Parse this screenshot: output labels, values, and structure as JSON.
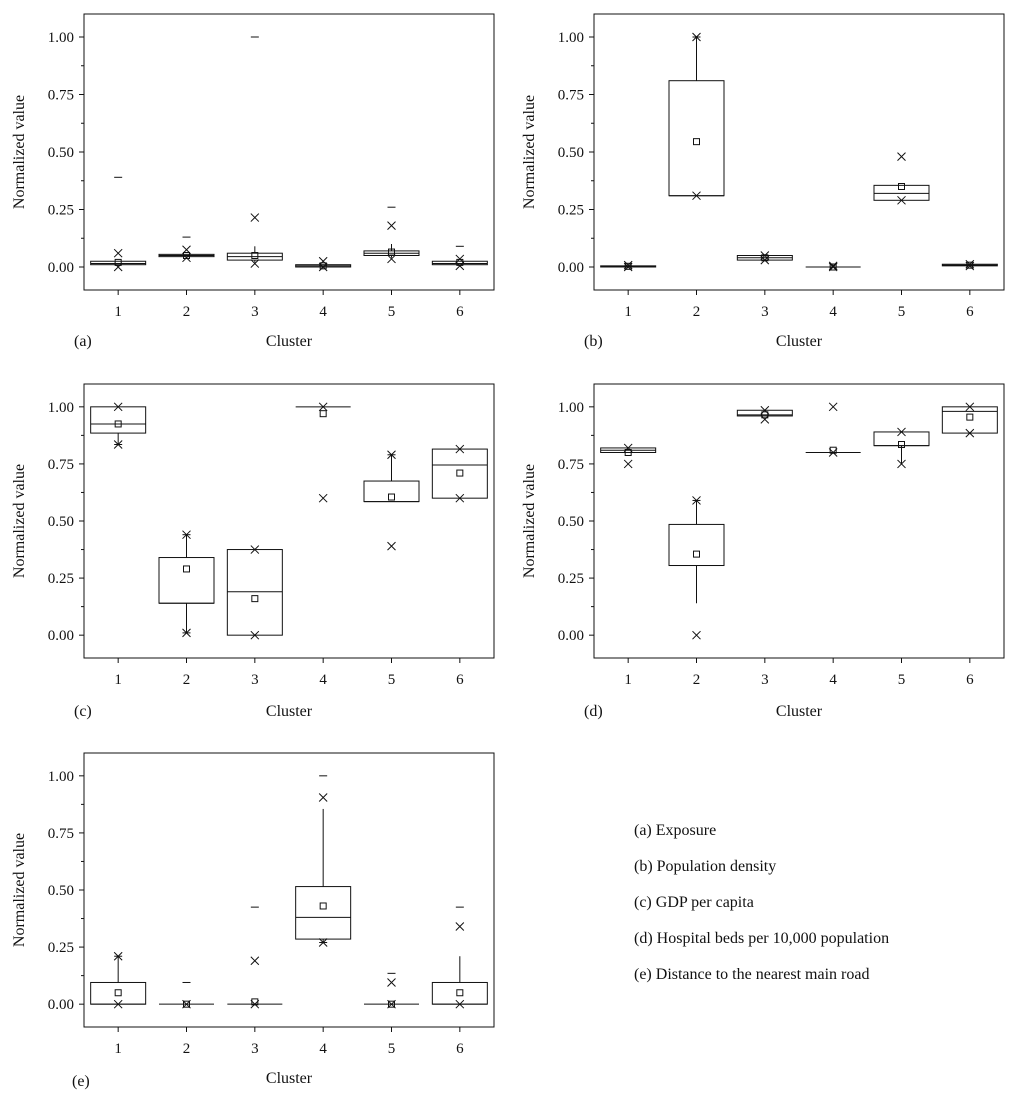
{
  "figure": {
    "legend": [
      "(a) Exposure",
      "(b) Population density",
      "(c) GDP per capita",
      "(d) Hospital beds per 10,000 population",
      "(e) Distance to the nearest main road"
    ]
  },
  "chart_data": [
    {
      "type": "box",
      "panel_label": "(a)",
      "xlabel": "Cluster",
      "ylabel": "Normalized value",
      "ylim": [
        -0.1,
        1.1
      ],
      "yticks": [
        "0.00",
        "0.25",
        "0.50",
        "0.75",
        "1.00"
      ],
      "categories": [
        "1",
        "2",
        "3",
        "4",
        "5",
        "6"
      ],
      "boxes": [
        {
          "q1": 0.01,
          "median": 0.015,
          "q3": 0.025,
          "whisker_low": 0.01,
          "whisker_high": 0.025,
          "mean": 0.02,
          "x_marks": [
            0.06,
            0.0
          ],
          "dash_marks": [
            0.39
          ]
        },
        {
          "q1": 0.045,
          "median": 0.05,
          "q3": 0.055,
          "whisker_low": 0.045,
          "whisker_high": 0.055,
          "mean": 0.05,
          "x_marks": [
            0.075,
            0.04
          ],
          "dash_marks": [
            0.13
          ]
        },
        {
          "q1": 0.03,
          "median": 0.045,
          "q3": 0.06,
          "whisker_low": 0.02,
          "whisker_high": 0.09,
          "mean": 0.05,
          "x_marks": [
            0.215,
            0.015
          ],
          "dash_marks": [
            1.0
          ]
        },
        {
          "q1": 0.0,
          "median": 0.005,
          "q3": 0.01,
          "whisker_low": 0.0,
          "whisker_high": 0.01,
          "mean": 0.005,
          "x_marks": [
            0.025,
            0.0
          ],
          "dash_marks": []
        },
        {
          "q1": 0.05,
          "median": 0.06,
          "q3": 0.07,
          "whisker_low": 0.04,
          "whisker_high": 0.1,
          "mean": 0.065,
          "x_marks": [
            0.18,
            0.035
          ],
          "dash_marks": [
            0.26
          ]
        },
        {
          "q1": 0.01,
          "median": 0.015,
          "q3": 0.025,
          "whisker_low": 0.01,
          "whisker_high": 0.025,
          "mean": 0.02,
          "x_marks": [
            0.035,
            0.005
          ],
          "dash_marks": [
            0.09
          ]
        }
      ]
    },
    {
      "type": "box",
      "panel_label": "(b)",
      "xlabel": "Cluster",
      "ylabel": "Normalized value",
      "ylim": [
        -0.1,
        1.1
      ],
      "yticks": [
        "0.00",
        "0.25",
        "0.50",
        "0.75",
        "1.00"
      ],
      "categories": [
        "1",
        "2",
        "3",
        "4",
        "5",
        "6"
      ],
      "boxes": [
        {
          "q1": 0.0,
          "median": 0.002,
          "q3": 0.005,
          "whisker_low": 0.0,
          "whisker_high": 0.005,
          "mean": 0.003,
          "x_marks": [
            0.008,
            0.0
          ],
          "dash_marks": []
        },
        {
          "q1": 0.31,
          "median": 0.31,
          "q3": 0.81,
          "whisker_low": 0.31,
          "whisker_high": 1.0,
          "mean": 0.545,
          "x_marks": [
            1.0,
            0.31
          ],
          "dash_marks": [
            1.0
          ]
        },
        {
          "q1": 0.03,
          "median": 0.04,
          "q3": 0.05,
          "whisker_low": 0.03,
          "whisker_high": 0.05,
          "mean": 0.04,
          "x_marks": [
            0.05,
            0.03
          ],
          "dash_marks": []
        },
        {
          "q1": 0.0,
          "median": 0.0,
          "q3": 0.0,
          "whisker_low": 0.0,
          "whisker_high": 0.0,
          "mean": 0.0,
          "x_marks": [
            0.005,
            0.0
          ],
          "dash_marks": []
        },
        {
          "q1": 0.29,
          "median": 0.32,
          "q3": 0.355,
          "whisker_low": 0.29,
          "whisker_high": 0.355,
          "mean": 0.35,
          "x_marks": [
            0.48,
            0.29
          ],
          "dash_marks": []
        },
        {
          "q1": 0.005,
          "median": 0.008,
          "q3": 0.012,
          "whisker_low": 0.005,
          "whisker_high": 0.012,
          "mean": 0.008,
          "x_marks": [
            0.012,
            0.004
          ],
          "dash_marks": []
        }
      ]
    },
    {
      "type": "box",
      "panel_label": "(c)",
      "xlabel": "Cluster",
      "ylabel": "Normalized value",
      "ylim": [
        -0.1,
        1.1
      ],
      "yticks": [
        "0.00",
        "0.25",
        "0.50",
        "0.75",
        "1.00"
      ],
      "categories": [
        "1",
        "2",
        "3",
        "4",
        "5",
        "6"
      ],
      "boxes": [
        {
          "q1": 0.885,
          "median": 0.925,
          "q3": 1.0,
          "whisker_low": 0.835,
          "whisker_high": 1.0,
          "mean": 0.925,
          "x_marks": [
            1.0,
            0.835
          ],
          "dash_marks": [
            0.835
          ]
        },
        {
          "q1": 0.14,
          "median": 0.14,
          "q3": 0.34,
          "whisker_low": 0.01,
          "whisker_high": 0.44,
          "mean": 0.29,
          "x_marks": [
            0.44,
            0.01
          ],
          "dash_marks": [
            0.44,
            0.01
          ]
        },
        {
          "q1": 0.0,
          "median": 0.19,
          "q3": 0.375,
          "whisker_low": 0.0,
          "whisker_high": 0.375,
          "mean": 0.16,
          "x_marks": [
            0.375,
            0.0
          ],
          "dash_marks": []
        },
        {
          "q1": 1.0,
          "median": 1.0,
          "q3": 1.0,
          "whisker_low": 1.0,
          "whisker_high": 1.0,
          "mean": 0.97,
          "x_marks": [
            1.0,
            0.6
          ],
          "dash_marks": []
        },
        {
          "q1": 0.585,
          "median": 0.585,
          "q3": 0.675,
          "whisker_low": 0.585,
          "whisker_high": 0.79,
          "mean": 0.605,
          "x_marks": [
            0.79,
            0.39
          ],
          "dash_marks": [
            0.79
          ]
        },
        {
          "q1": 0.6,
          "median": 0.745,
          "q3": 0.815,
          "whisker_low": 0.6,
          "whisker_high": 0.815,
          "mean": 0.71,
          "x_marks": [
            0.815,
            0.6
          ],
          "dash_marks": []
        }
      ]
    },
    {
      "type": "box",
      "panel_label": "(d)",
      "xlabel": "Cluster",
      "ylabel": "Normalized value",
      "ylim": [
        -0.1,
        1.1
      ],
      "yticks": [
        "0.00",
        "0.25",
        "0.50",
        "0.75",
        "1.00"
      ],
      "categories": [
        "1",
        "2",
        "3",
        "4",
        "5",
        "6"
      ],
      "boxes": [
        {
          "q1": 0.8,
          "median": 0.81,
          "q3": 0.82,
          "whisker_low": 0.8,
          "whisker_high": 0.82,
          "mean": 0.8,
          "x_marks": [
            0.82,
            0.75
          ],
          "dash_marks": []
        },
        {
          "q1": 0.305,
          "median": 0.305,
          "q3": 0.485,
          "whisker_low": 0.14,
          "whisker_high": 0.59,
          "mean": 0.355,
          "x_marks": [
            0.59,
            0.0
          ],
          "dash_marks": [
            0.59
          ]
        },
        {
          "q1": 0.96,
          "median": 0.965,
          "q3": 0.985,
          "whisker_low": 0.96,
          "whisker_high": 0.985,
          "mean": 0.965,
          "x_marks": [
            0.985,
            0.945
          ],
          "dash_marks": []
        },
        {
          "q1": 0.8,
          "median": 0.8,
          "q3": 0.8,
          "whisker_low": 0.8,
          "whisker_high": 0.8,
          "mean": 0.81,
          "x_marks": [
            1.0,
            0.8
          ],
          "dash_marks": []
        },
        {
          "q1": 0.83,
          "median": 0.83,
          "q3": 0.89,
          "whisker_low": 0.75,
          "whisker_high": 0.89,
          "mean": 0.835,
          "x_marks": [
            0.89,
            0.75
          ],
          "dash_marks": []
        },
        {
          "q1": 0.885,
          "median": 0.98,
          "q3": 1.0,
          "whisker_low": 0.885,
          "whisker_high": 1.0,
          "mean": 0.955,
          "x_marks": [
            1.0,
            0.885
          ],
          "dash_marks": []
        }
      ]
    },
    {
      "type": "box",
      "panel_label": "(e)",
      "xlabel": "Cluster",
      "ylabel": "Normalized value",
      "ylim": [
        -0.1,
        1.1
      ],
      "yticks": [
        "0.00",
        "0.25",
        "0.50",
        "0.75",
        "1.00"
      ],
      "categories": [
        "1",
        "2",
        "3",
        "4",
        "5",
        "6"
      ],
      "boxes": [
        {
          "q1": 0.0,
          "median": 0.0,
          "q3": 0.095,
          "whisker_low": 0.0,
          "whisker_high": 0.21,
          "mean": 0.05,
          "x_marks": [
            0.21,
            0.0
          ],
          "dash_marks": [
            0.21
          ]
        },
        {
          "q1": 0.0,
          "median": 0.0,
          "q3": 0.0,
          "whisker_low": 0.0,
          "whisker_high": 0.0,
          "mean": 0.0,
          "x_marks": [
            0.0
          ],
          "dash_marks": [
            0.095
          ]
        },
        {
          "q1": 0.0,
          "median": 0.0,
          "q3": 0.0,
          "whisker_low": 0.0,
          "whisker_high": 0.0,
          "mean": 0.01,
          "x_marks": [
            0.19,
            0.0
          ],
          "dash_marks": [
            0.425
          ]
        },
        {
          "q1": 0.285,
          "median": 0.38,
          "q3": 0.515,
          "whisker_low": 0.27,
          "whisker_high": 0.855,
          "mean": 0.43,
          "x_marks": [
            0.905,
            0.27
          ],
          "dash_marks": [
            1.0,
            0.27
          ]
        },
        {
          "q1": 0.0,
          "median": 0.0,
          "q3": 0.0,
          "whisker_low": 0.0,
          "whisker_high": 0.0,
          "mean": 0.0,
          "x_marks": [
            0.095,
            0.0
          ],
          "dash_marks": [
            0.135
          ]
        },
        {
          "q1": 0.0,
          "median": 0.0,
          "q3": 0.095,
          "whisker_low": 0.0,
          "whisker_high": 0.21,
          "mean": 0.05,
          "x_marks": [
            0.34,
            0.0
          ],
          "dash_marks": [
            0.425
          ]
        }
      ]
    }
  ]
}
